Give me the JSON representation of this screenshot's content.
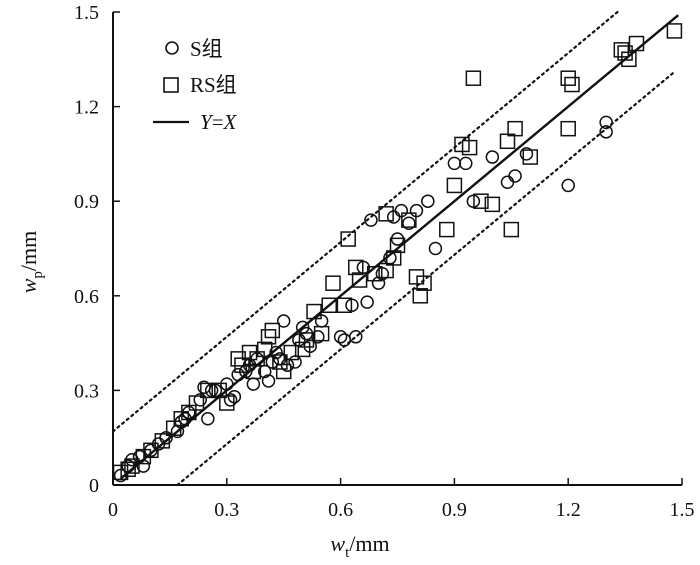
{
  "chart_data": {
    "type": "scatter",
    "xlabel": {
      "var": "w",
      "sub": "t",
      "unit": "/mm"
    },
    "ylabel": {
      "var": "w",
      "sub": "p",
      "unit": "/mm"
    },
    "xlim": [
      0,
      1.5
    ],
    "ylim": [
      0,
      1.5
    ],
    "xticks": [
      "0",
      "0.3",
      "0.6",
      "0.9",
      "1.2",
      "1.5"
    ],
    "yticks": [
      "0",
      "0.3",
      "0.6",
      "0.9",
      "1.2",
      "1.5"
    ],
    "grid": false,
    "legend_position": "top-left",
    "legend": {
      "s": "S组",
      "rs": "RS组",
      "line_y": "Y",
      "line_eq": "=",
      "line_x": "X"
    },
    "reference_lines": [
      {
        "style": "solid",
        "intercept": 0.0
      },
      {
        "style": "dotted",
        "intercept": 0.17
      },
      {
        "style": "dotted",
        "intercept": -0.17
      }
    ],
    "series": [
      {
        "name": "S组",
        "marker": "circle",
        "points": [
          [
            0.02,
            0.03
          ],
          [
            0.04,
            0.06
          ],
          [
            0.05,
            0.08
          ],
          [
            0.07,
            0.09
          ],
          [
            0.08,
            0.06
          ],
          [
            0.1,
            0.11
          ],
          [
            0.12,
            0.13
          ],
          [
            0.14,
            0.15
          ],
          [
            0.17,
            0.17
          ],
          [
            0.18,
            0.2
          ],
          [
            0.19,
            0.21
          ],
          [
            0.2,
            0.23
          ],
          [
            0.23,
            0.27
          ],
          [
            0.24,
            0.31
          ],
          [
            0.25,
            0.21
          ],
          [
            0.26,
            0.3
          ],
          [
            0.27,
            0.3
          ],
          [
            0.3,
            0.32
          ],
          [
            0.31,
            0.27
          ],
          [
            0.32,
            0.28
          ],
          [
            0.33,
            0.35
          ],
          [
            0.35,
            0.36
          ],
          [
            0.36,
            0.38
          ],
          [
            0.37,
            0.32
          ],
          [
            0.38,
            0.4
          ],
          [
            0.4,
            0.36
          ],
          [
            0.41,
            0.33
          ],
          [
            0.42,
            0.39
          ],
          [
            0.43,
            0.42
          ],
          [
            0.44,
            0.4
          ],
          [
            0.45,
            0.52
          ],
          [
            0.46,
            0.38
          ],
          [
            0.48,
            0.39
          ],
          [
            0.49,
            0.46
          ],
          [
            0.5,
            0.5
          ],
          [
            0.51,
            0.48
          ],
          [
            0.52,
            0.44
          ],
          [
            0.54,
            0.47
          ],
          [
            0.55,
            0.52
          ],
          [
            0.6,
            0.47
          ],
          [
            0.61,
            0.46
          ],
          [
            0.63,
            0.57
          ],
          [
            0.64,
            0.47
          ],
          [
            0.66,
            0.69
          ],
          [
            0.67,
            0.58
          ],
          [
            0.7,
            0.64
          ],
          [
            0.71,
            0.67
          ],
          [
            0.73,
            0.72
          ],
          [
            0.74,
            0.85
          ],
          [
            0.75,
            0.78
          ],
          [
            0.76,
            0.87
          ],
          [
            0.78,
            0.83
          ],
          [
            0.8,
            0.87
          ],
          [
            0.83,
            0.9
          ],
          [
            0.85,
            0.75
          ],
          [
            0.9,
            1.02
          ],
          [
            0.93,
            1.02
          ],
          [
            0.95,
            0.9
          ],
          [
            1.0,
            1.04
          ],
          [
            1.04,
            0.96
          ],
          [
            1.06,
            0.98
          ],
          [
            1.09,
            1.05
          ],
          [
            1.2,
            0.95
          ],
          [
            1.3,
            1.15
          ],
          [
            1.3,
            1.12
          ],
          [
            0.68,
            0.84
          ]
        ]
      },
      {
        "name": "RS组",
        "marker": "square",
        "points": [
          [
            0.02,
            0.04
          ],
          [
            0.04,
            0.05
          ],
          [
            0.05,
            0.06
          ],
          [
            0.08,
            0.09
          ],
          [
            0.1,
            0.11
          ],
          [
            0.13,
            0.14
          ],
          [
            0.16,
            0.18
          ],
          [
            0.18,
            0.21
          ],
          [
            0.2,
            0.23
          ],
          [
            0.22,
            0.26
          ],
          [
            0.25,
            0.3
          ],
          [
            0.28,
            0.3
          ],
          [
            0.3,
            0.26
          ],
          [
            0.33,
            0.4
          ],
          [
            0.34,
            0.38
          ],
          [
            0.36,
            0.42
          ],
          [
            0.37,
            0.36
          ],
          [
            0.38,
            0.4
          ],
          [
            0.4,
            0.43
          ],
          [
            0.41,
            0.47
          ],
          [
            0.42,
            0.49
          ],
          [
            0.44,
            0.39
          ],
          [
            0.45,
            0.36
          ],
          [
            0.47,
            0.42
          ],
          [
            0.5,
            0.43
          ],
          [
            0.51,
            0.46
          ],
          [
            0.53,
            0.55
          ],
          [
            0.55,
            0.48
          ],
          [
            0.57,
            0.57
          ],
          [
            0.58,
            0.64
          ],
          [
            0.61,
            0.57
          ],
          [
            0.62,
            0.78
          ],
          [
            0.64,
            0.69
          ],
          [
            0.65,
            0.65
          ],
          [
            0.69,
            0.67
          ],
          [
            0.72,
            0.68
          ],
          [
            0.74,
            0.72
          ],
          [
            0.75,
            0.76
          ],
          [
            0.78,
            0.84
          ],
          [
            0.8,
            0.66
          ],
          [
            0.81,
            0.6
          ],
          [
            0.82,
            0.64
          ],
          [
            0.88,
            0.81
          ],
          [
            0.9,
            0.95
          ],
          [
            0.92,
            1.08
          ],
          [
            0.94,
            1.07
          ],
          [
            0.95,
            1.29
          ],
          [
            0.97,
            0.9
          ],
          [
            1.0,
            0.89
          ],
          [
            1.04,
            1.09
          ],
          [
            1.05,
            0.81
          ],
          [
            1.06,
            1.13
          ],
          [
            1.1,
            1.04
          ],
          [
            1.2,
            1.13
          ],
          [
            1.21,
            1.27
          ],
          [
            1.2,
            1.29
          ],
          [
            1.34,
            1.38
          ],
          [
            1.35,
            1.37
          ],
          [
            1.36,
            1.35
          ],
          [
            1.38,
            1.4
          ],
          [
            1.48,
            1.44
          ],
          [
            0.72,
            0.86
          ]
        ]
      }
    ]
  }
}
